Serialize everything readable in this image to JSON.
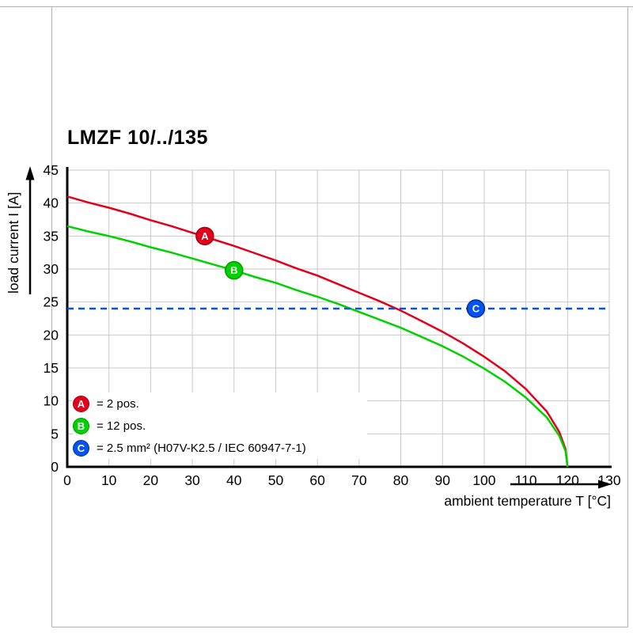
{
  "chart_data": {
    "type": "line",
    "title": "LMZF 10/../135",
    "xlabel": "ambient temperature T [°C]",
    "ylabel": "load current I [A]",
    "xlim": [
      0,
      130
    ],
    "ylim": [
      0,
      45
    ],
    "x_ticks": [
      0,
      10,
      20,
      30,
      40,
      50,
      60,
      70,
      80,
      90,
      100,
      110,
      120,
      130
    ],
    "y_ticks": [
      0,
      5,
      10,
      15,
      20,
      25,
      30,
      35,
      40,
      45
    ],
    "grid": true,
    "grid_color": "#c9c9c9",
    "legend_position": "bottom-left",
    "series": [
      {
        "name": "A",
        "legend_label": "= 2 pos.",
        "color": "#e3001b",
        "border_color": "#a80014",
        "style": "solid",
        "marker_at": {
          "x": 33,
          "y": 35
        },
        "points": [
          [
            0,
            41.0
          ],
          [
            5,
            40.1
          ],
          [
            10,
            39.3
          ],
          [
            15,
            38.4
          ],
          [
            20,
            37.4
          ],
          [
            25,
            36.5
          ],
          [
            30,
            35.5
          ],
          [
            35,
            34.5
          ],
          [
            40,
            33.5
          ],
          [
            45,
            32.4
          ],
          [
            50,
            31.3
          ],
          [
            55,
            30.1
          ],
          [
            60,
            29.0
          ],
          [
            65,
            27.7
          ],
          [
            70,
            26.4
          ],
          [
            75,
            25.1
          ],
          [
            80,
            23.7
          ],
          [
            85,
            22.1
          ],
          [
            90,
            20.5
          ],
          [
            95,
            18.7
          ],
          [
            100,
            16.7
          ],
          [
            105,
            14.5
          ],
          [
            110,
            11.8
          ],
          [
            115,
            8.4
          ],
          [
            118,
            5.3
          ],
          [
            119.5,
            2.7
          ],
          [
            120,
            0
          ]
        ]
      },
      {
        "name": "B",
        "legend_label": "= 12 pos.",
        "color": "#00d200",
        "border_color": "#009a00",
        "style": "solid",
        "marker_at": {
          "x": 40,
          "y": 29.8
        },
        "points": [
          [
            0,
            36.5
          ],
          [
            5,
            35.7
          ],
          [
            10,
            35.0
          ],
          [
            15,
            34.2
          ],
          [
            20,
            33.3
          ],
          [
            25,
            32.5
          ],
          [
            30,
            31.6
          ],
          [
            35,
            30.7
          ],
          [
            40,
            29.8
          ],
          [
            45,
            28.8
          ],
          [
            50,
            27.9
          ],
          [
            55,
            26.8
          ],
          [
            60,
            25.8
          ],
          [
            65,
            24.7
          ],
          [
            70,
            23.5
          ],
          [
            75,
            22.3
          ],
          [
            80,
            21.1
          ],
          [
            85,
            19.7
          ],
          [
            90,
            18.3
          ],
          [
            95,
            16.7
          ],
          [
            100,
            14.9
          ],
          [
            105,
            12.9
          ],
          [
            110,
            10.5
          ],
          [
            115,
            7.5
          ],
          [
            118,
            4.7
          ],
          [
            119.5,
            2.4
          ],
          [
            120,
            0
          ]
        ]
      },
      {
        "name": "C",
        "legend_label": "= 2.5 mm² (H07V-K2.5 / IEC 60947-7-1)",
        "color": "#0552f0",
        "border_color": "#03309c",
        "style": "dashed",
        "marker_at": {
          "x": 98,
          "y": 24
        },
        "points": [
          [
            0,
            24
          ],
          [
            130,
            24
          ]
        ]
      }
    ]
  }
}
